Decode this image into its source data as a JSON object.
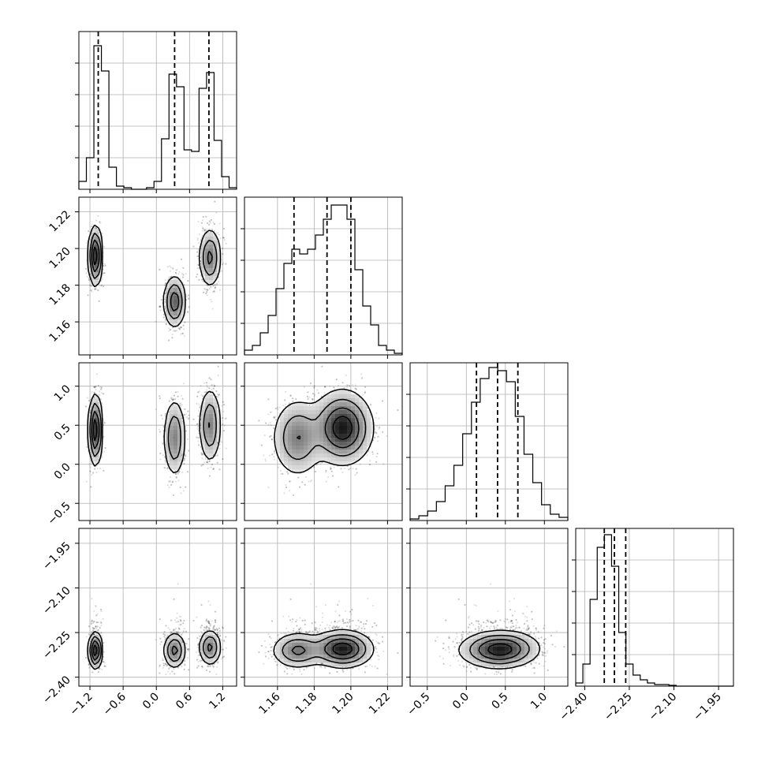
{
  "chart_data": {
    "type": "corner",
    "parameters": [
      {
        "range": [
          -1.4,
          1.45
        ],
        "ticks": [
          -1.2,
          -0.6,
          0.0,
          0.6,
          1.2
        ],
        "tick_labels": [
          "−1.2",
          "−0.6",
          "0.0",
          "0.6",
          "1.2"
        ],
        "quantiles": [
          -1.05,
          0.33,
          0.95
        ],
        "hist_bins": [
          -1.4,
          1.45
        ],
        "hist_values": [
          0.05,
          0.2,
          0.91,
          0.75,
          0.14,
          0.02,
          0.01,
          0.0,
          0.0,
          0.01,
          0.05,
          0.32,
          0.73,
          0.65,
          0.25,
          0.24,
          0.64,
          0.74,
          0.31,
          0.08,
          0.01
        ],
        "hist_ylim": [
          0,
          1.0
        ]
      },
      {
        "range": [
          1.142,
          1.228
        ],
        "ticks": [
          1.16,
          1.18,
          1.2,
          1.22
        ],
        "tick_labels": [
          "1.16",
          "1.18",
          "1.20",
          "1.22"
        ],
        "quantiles": [
          1.169,
          1.187,
          1.2
        ],
        "hist_bins": [
          1.142,
          1.228
        ],
        "hist_values": [
          0.03,
          0.06,
          0.14,
          0.25,
          0.42,
          0.58,
          0.67,
          0.64,
          0.67,
          0.76,
          0.86,
          0.95,
          0.95,
          0.86,
          0.54,
          0.31,
          0.19,
          0.06,
          0.03,
          0.01
        ],
        "hist_ylim": [
          0,
          1.0
        ]
      },
      {
        "range": [
          -0.72,
          1.3
        ],
        "ticks": [
          -0.5,
          0.0,
          0.5,
          1.0
        ],
        "tick_labels": [
          "−0.5",
          "0.0",
          "0.5",
          "1.0"
        ],
        "quantiles": [
          0.13,
          0.4,
          0.66
        ],
        "hist_bins": [
          -0.72,
          1.3
        ],
        "hist_values": [
          0.01,
          0.03,
          0.06,
          0.12,
          0.22,
          0.35,
          0.55,
          0.75,
          0.9,
          0.97,
          0.95,
          0.88,
          0.66,
          0.42,
          0.24,
          0.1,
          0.04,
          0.02
        ],
        "hist_ylim": [
          0,
          1.0
        ]
      },
      {
        "range": [
          -2.43,
          -1.9
        ],
        "ticks": [
          -2.4,
          -2.25,
          -2.1,
          -1.95
        ],
        "tick_labels": [
          "−2.40",
          "−2.25",
          "−2.10",
          "−1.95"
        ],
        "quantiles": [
          -2.334,
          -2.3,
          -2.262
        ],
        "hist_bins": [
          -2.43,
          -1.9
        ],
        "hist_values": [
          0.02,
          0.14,
          0.55,
          0.88,
          0.96,
          0.76,
          0.34,
          0.14,
          0.07,
          0.04,
          0.02,
          0.01,
          0.01,
          0.005,
          0,
          0,
          0,
          0,
          0,
          0,
          0,
          0
        ],
        "hist_ylim": [
          0,
          1.0
        ]
      }
    ],
    "modes": [
      {
        "x": [
          -1.1,
          1.196,
          0.44,
          -2.31
        ],
        "sd": [
          0.06,
          0.008,
          0.22,
          0.03
        ],
        "weight": 0.33
      },
      {
        "x": [
          0.33,
          1.171,
          0.34,
          -2.31
        ],
        "sd": [
          0.1,
          0.007,
          0.25,
          0.03
        ],
        "weight": 0.34
      },
      {
        "x": [
          0.97,
          1.195,
          0.5,
          -2.3
        ],
        "sd": [
          0.1,
          0.008,
          0.24,
          0.03
        ],
        "weight": 0.33
      }
    ]
  }
}
